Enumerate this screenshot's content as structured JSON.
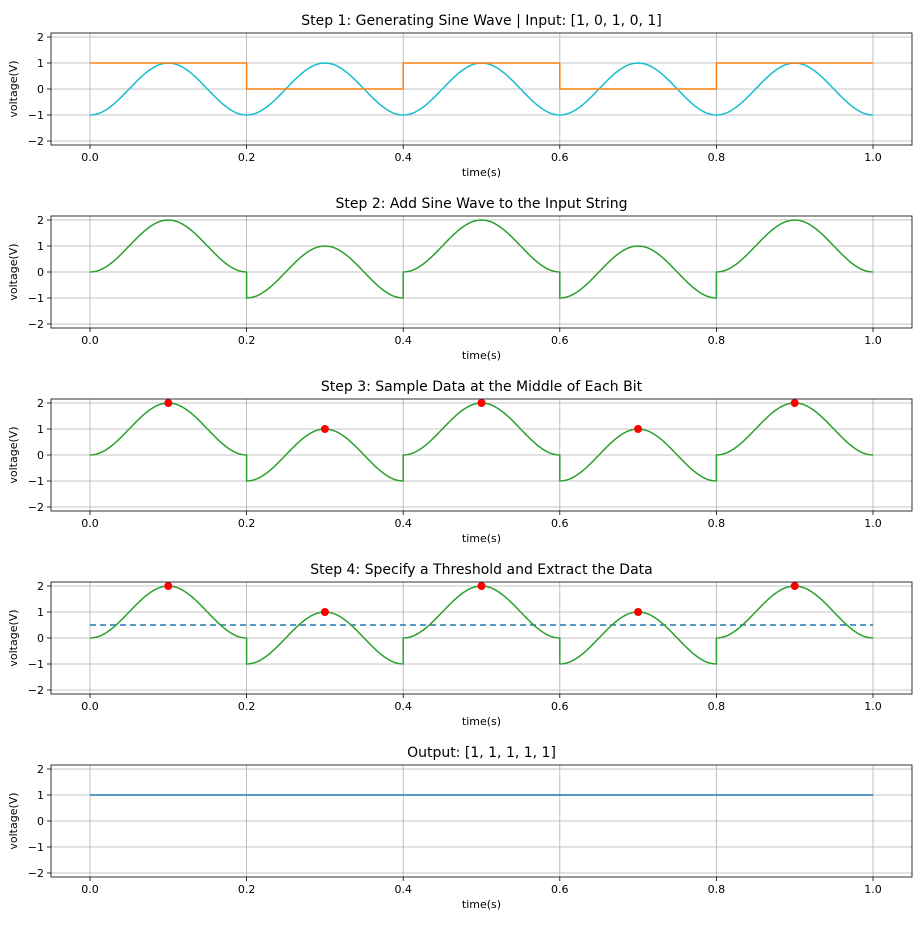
{
  "chart_data": [
    {
      "type": "line",
      "title": "Step 1: Generating Sine Wave | Input: [1, 0, 1, 0, 1]",
      "xlabel": "time(s)",
      "ylabel": "voltage(V)",
      "xlim": [
        0,
        1
      ],
      "ylim": [
        -2,
        2
      ],
      "x_ticks": [
        "0.0",
        "0.2",
        "0.4",
        "0.6",
        "0.8",
        "1.0"
      ],
      "y_ticks": [
        "2",
        "1",
        "0",
        "−1",
        "−2"
      ],
      "grid": true,
      "series": [
        {
          "kind": "sine",
          "color": "#17becf",
          "x": [
            0,
            0.1,
            0.2,
            0.3,
            0.4,
            0.5,
            0.6,
            0.7,
            0.8,
            0.9,
            1.0
          ],
          "values": [
            -1,
            1,
            -1,
            1,
            -1,
            1,
            -1,
            1,
            -1,
            1,
            -1
          ]
        },
        {
          "kind": "step",
          "color": "#ff7f0e",
          "x": [
            0,
            0.2,
            0.4,
            0.6,
            0.8,
            1.0
          ],
          "values": [
            1,
            0,
            1,
            0,
            1,
            1
          ]
        }
      ]
    },
    {
      "type": "line",
      "title": "Step 2: Add Sine Wave to the Input String",
      "xlabel": "time(s)",
      "ylabel": "voltage(V)",
      "xlim": [
        0,
        1
      ],
      "ylim": [
        -2,
        2
      ],
      "x_ticks": [
        "0.0",
        "0.2",
        "0.4",
        "0.6",
        "0.8",
        "1.0"
      ],
      "y_ticks": [
        "2",
        "1",
        "0",
        "−1",
        "−2"
      ],
      "grid": true,
      "series": [
        {
          "kind": "sum",
          "color": "#2ca02c",
          "x": [
            0,
            0.1,
            0.2,
            0.3,
            0.4,
            0.5,
            0.6,
            0.7,
            0.8,
            0.9,
            1.0
          ],
          "values": [
            0,
            2,
            0,
            1,
            -1,
            2,
            0,
            1,
            -1,
            2,
            0
          ]
        }
      ]
    },
    {
      "type": "line",
      "title": "Step 3: Sample Data at the Middle of Each Bit",
      "xlabel": "time(s)",
      "ylabel": "voltage(V)",
      "xlim": [
        0,
        1
      ],
      "ylim": [
        -2,
        2
      ],
      "x_ticks": [
        "0.0",
        "0.2",
        "0.4",
        "0.6",
        "0.8",
        "1.0"
      ],
      "y_ticks": [
        "2",
        "1",
        "0",
        "−1",
        "−2"
      ],
      "grid": true,
      "series": [
        {
          "kind": "sum",
          "color": "#2ca02c",
          "x": [
            0,
            0.1,
            0.2,
            0.3,
            0.4,
            0.5,
            0.6,
            0.7,
            0.8,
            0.9,
            1.0
          ],
          "values": [
            0,
            2,
            0,
            1,
            -1,
            2,
            0,
            1,
            -1,
            2,
            0
          ]
        }
      ],
      "points": {
        "color": "#ff0000",
        "x": [
          0.1,
          0.3,
          0.5,
          0.7,
          0.9
        ],
        "values": [
          2,
          1,
          2,
          1,
          2
        ]
      }
    },
    {
      "type": "line",
      "title": "Step 4: Specify a Threshold and Extract the Data",
      "xlabel": "time(s)",
      "ylabel": "voltage(V)",
      "xlim": [
        0,
        1
      ],
      "ylim": [
        -2,
        2
      ],
      "x_ticks": [
        "0.0",
        "0.2",
        "0.4",
        "0.6",
        "0.8",
        "1.0"
      ],
      "y_ticks": [
        "2",
        "1",
        "0",
        "−1",
        "−2"
      ],
      "grid": true,
      "series": [
        {
          "kind": "sum",
          "color": "#2ca02c",
          "x": [
            0,
            0.1,
            0.2,
            0.3,
            0.4,
            0.5,
            0.6,
            0.7,
            0.8,
            0.9,
            1.0
          ],
          "values": [
            0,
            2,
            0,
            1,
            -1,
            2,
            0,
            1,
            -1,
            2,
            0
          ]
        }
      ],
      "points": {
        "color": "#ff0000",
        "x": [
          0.1,
          0.3,
          0.5,
          0.7,
          0.9
        ],
        "values": [
          2,
          1,
          2,
          1,
          2
        ]
      },
      "threshold": {
        "value": 0.5,
        "color": "#1f77b4",
        "style": "dashed"
      }
    },
    {
      "type": "line",
      "title": "Output: [1, 1, 1, 1, 1]",
      "xlabel": "time(s)",
      "ylabel": "voltage(V)",
      "xlim": [
        0,
        1
      ],
      "ylim": [
        -2,
        2
      ],
      "x_ticks": [
        "0.0",
        "0.2",
        "0.4",
        "0.6",
        "0.8",
        "1.0"
      ],
      "y_ticks": [
        "2",
        "1",
        "0",
        "−1",
        "−2"
      ],
      "grid": true,
      "series": [
        {
          "kind": "flat",
          "color": "#1f77b4",
          "x": [
            0,
            1.0
          ],
          "values": [
            1,
            1
          ]
        }
      ]
    }
  ]
}
